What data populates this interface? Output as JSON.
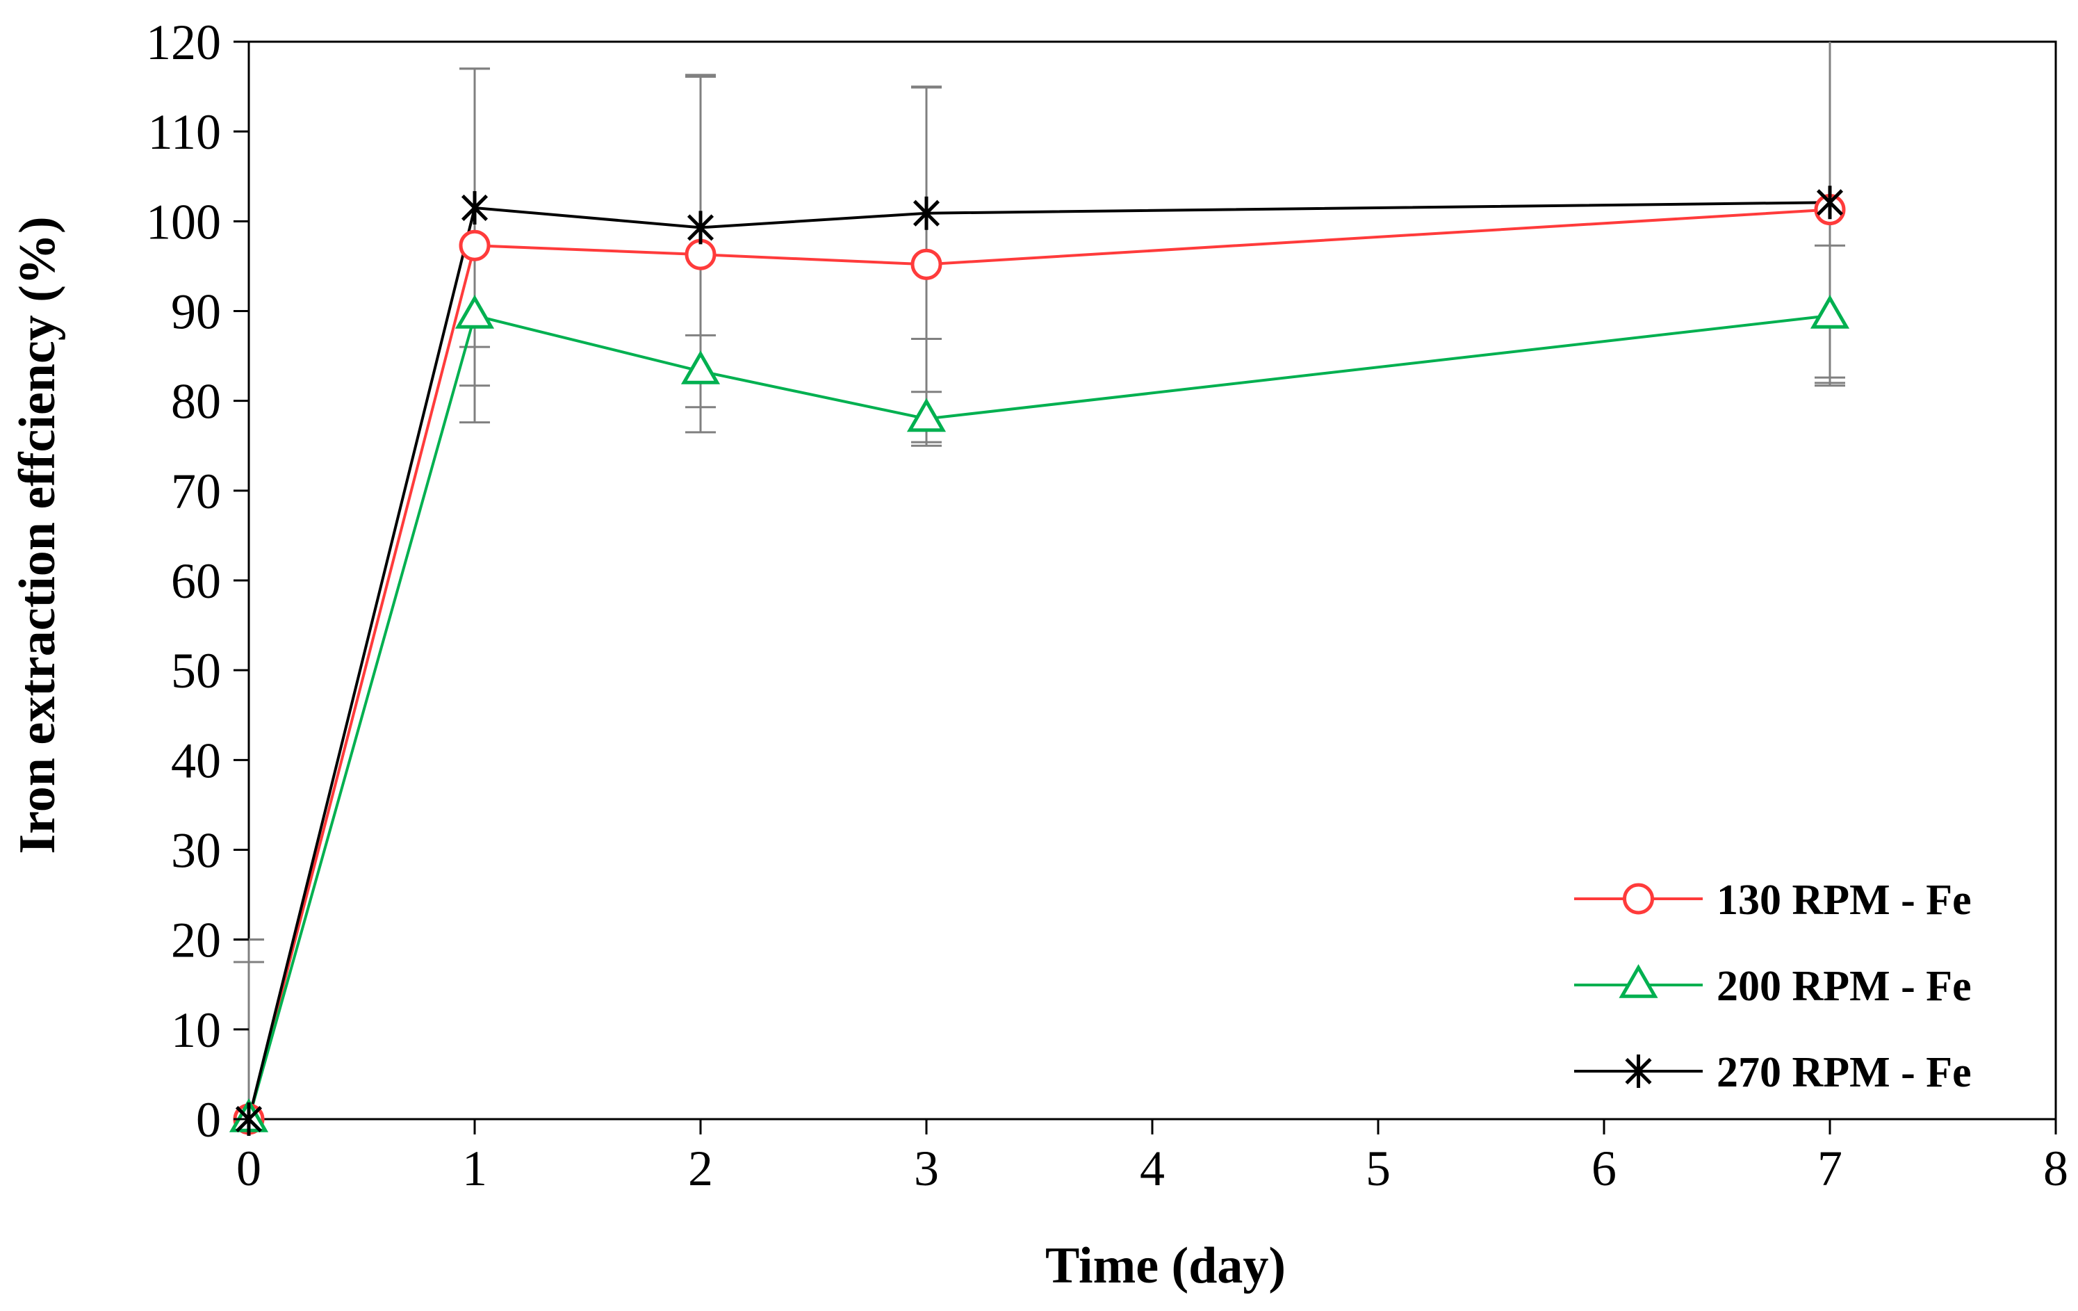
{
  "chart_data": {
    "type": "line",
    "title": "",
    "xlabel": "Time (day)",
    "ylabel": "Iron extraction effciency (%)",
    "xlim": [
      0,
      8
    ],
    "ylim": [
      0,
      120
    ],
    "x_ticks": [
      0,
      1,
      2,
      3,
      4,
      5,
      6,
      7,
      8
    ],
    "y_ticks": [
      0,
      10,
      20,
      30,
      40,
      50,
      60,
      70,
      80,
      90,
      100,
      110,
      120
    ],
    "grid": false,
    "legend_position": "bottom-right",
    "x": [
      0,
      1,
      2,
      3,
      7
    ],
    "series": [
      {
        "name": "130 RPM - Fe",
        "color": "#ff3b3b",
        "marker": "circle",
        "values": [
          0,
          97.3,
          96.3,
          95.2,
          101.3
        ],
        "error": [
          20,
          19.7,
          19.8,
          19.8,
          19.3
        ]
      },
      {
        "name": "200 RPM - Fe",
        "color": "#00b050",
        "marker": "triangle",
        "values": [
          0,
          89.5,
          83.3,
          78,
          89.5
        ],
        "error": [
          17.5,
          7.8,
          4,
          3,
          7.8
        ]
      },
      {
        "name": "270 RPM - Fe",
        "color": "#000000",
        "marker": "star",
        "values": [
          0,
          101.5,
          99.3,
          100.9,
          102.1
        ],
        "error": [
          20,
          15.5,
          17,
          14,
          19.5
        ]
      }
    ]
  }
}
